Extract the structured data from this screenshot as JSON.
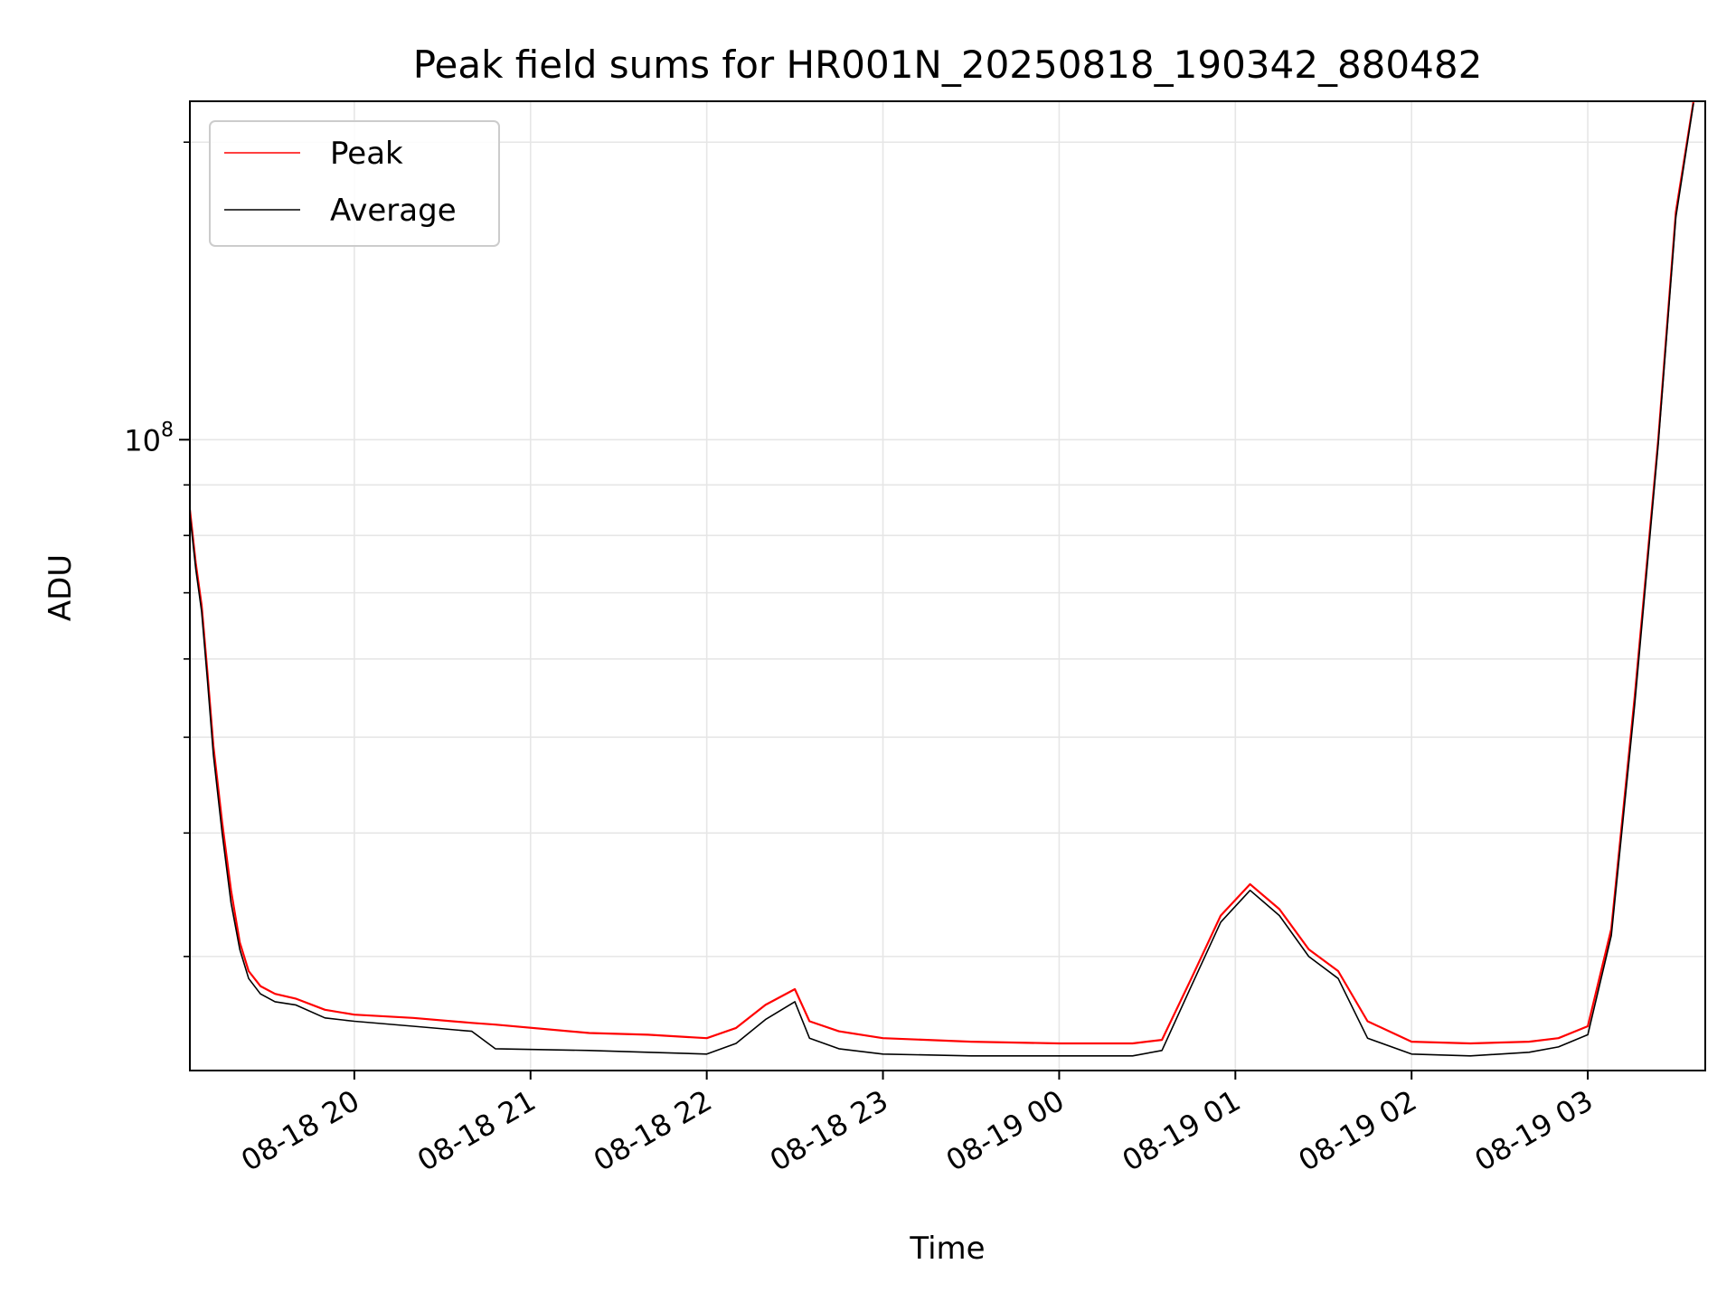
{
  "chart_data": {
    "type": "line",
    "title": "Peak field sums for HR001N_20250818_190342_880482",
    "xlabel": "Time",
    "ylabel": "ADU",
    "yscale": "log",
    "grid": true,
    "legend_position": "top-left",
    "x_tick_labels": [
      "08-18 20",
      "08-18 21",
      "08-18 22",
      "08-18 23",
      "08-19 00",
      "08-19 01",
      "08-19 02",
      "08-19 03"
    ],
    "x_tick_rotation_deg": 30,
    "y_tick_label": {
      "base": "10",
      "exponent": "8"
    },
    "xlim": [
      "2025-08-18 19:04",
      "2025-08-19 03:40"
    ],
    "ylim": [
      23000000,
      220000000
    ],
    "series": [
      {
        "name": "Peak",
        "color": "#ff0000",
        "x": [
          "2025-08-18 19:04",
          "2025-08-18 19:06",
          "2025-08-18 19:08",
          "2025-08-18 19:10",
          "2025-08-18 19:12",
          "2025-08-18 19:15",
          "2025-08-18 19:18",
          "2025-08-18 19:21",
          "2025-08-18 19:24",
          "2025-08-18 19:28",
          "2025-08-18 19:33",
          "2025-08-18 19:40",
          "2025-08-18 19:50",
          "2025-08-18 20:00",
          "2025-08-18 20:20",
          "2025-08-18 20:40",
          "2025-08-18 20:48",
          "2025-08-18 21:20",
          "2025-08-18 21:40",
          "2025-08-18 22:00",
          "2025-08-18 22:10",
          "2025-08-18 22:20",
          "2025-08-18 22:30",
          "2025-08-18 22:35",
          "2025-08-18 22:45",
          "2025-08-18 23:00",
          "2025-08-18 23:30",
          "2025-08-19 00:00",
          "2025-08-19 00:25",
          "2025-08-19 00:35",
          "2025-08-19 00:45",
          "2025-08-19 00:55",
          "2025-08-19 01:05",
          "2025-08-19 01:15",
          "2025-08-19 01:25",
          "2025-08-19 01:35",
          "2025-08-19 01:45",
          "2025-08-19 02:00",
          "2025-08-19 02:20",
          "2025-08-19 02:40",
          "2025-08-19 02:50",
          "2025-08-19 03:00",
          "2025-08-19 03:08",
          "2025-08-19 03:16",
          "2025-08-19 03:24",
          "2025-08-19 03:30",
          "2025-08-19 03:36"
        ],
        "values": [
          85000000,
          75000000,
          68000000,
          58000000,
          49000000,
          41000000,
          35000000,
          31000000,
          29000000,
          28000000,
          27500000,
          27200000,
          26500000,
          26200000,
          26000000,
          25700000,
          25600000,
          25100000,
          25000000,
          24800000,
          25400000,
          26800000,
          27800000,
          25800000,
          25200000,
          24800000,
          24600000,
          24500000,
          24500000,
          24700000,
          28500000,
          33000000,
          35500000,
          33500000,
          30500000,
          29000000,
          25800000,
          24600000,
          24500000,
          24600000,
          24800000,
          25500000,
          32000000,
          55000000,
          100000000,
          170000000,
          220000000
        ]
      },
      {
        "name": "Average",
        "color": "#000000",
        "x": [
          "2025-08-18 19:04",
          "2025-08-18 19:06",
          "2025-08-18 19:08",
          "2025-08-18 19:10",
          "2025-08-18 19:12",
          "2025-08-18 19:15",
          "2025-08-18 19:18",
          "2025-08-18 19:21",
          "2025-08-18 19:24",
          "2025-08-18 19:28",
          "2025-08-18 19:33",
          "2025-08-18 19:40",
          "2025-08-18 19:50",
          "2025-08-18 20:00",
          "2025-08-18 20:20",
          "2025-08-18 20:40",
          "2025-08-18 20:48",
          "2025-08-18 21:20",
          "2025-08-18 21:40",
          "2025-08-18 22:00",
          "2025-08-18 22:10",
          "2025-08-18 22:20",
          "2025-08-18 22:30",
          "2025-08-18 22:35",
          "2025-08-18 22:45",
          "2025-08-18 23:00",
          "2025-08-18 23:30",
          "2025-08-19 00:00",
          "2025-08-19 00:25",
          "2025-08-19 00:35",
          "2025-08-19 00:45",
          "2025-08-19 00:55",
          "2025-08-19 01:05",
          "2025-08-19 01:15",
          "2025-08-19 01:25",
          "2025-08-19 01:35",
          "2025-08-19 01:45",
          "2025-08-19 02:00",
          "2025-08-19 02:20",
          "2025-08-19 02:40",
          "2025-08-19 02:50",
          "2025-08-19 03:00",
          "2025-08-19 03:08",
          "2025-08-19 03:16",
          "2025-08-19 03:24",
          "2025-08-19 03:30",
          "2025-08-19 03:36"
        ],
        "values": [
          84000000,
          74000000,
          67000000,
          57000000,
          48000000,
          40000000,
          34000000,
          30500000,
          28500000,
          27500000,
          27000000,
          26800000,
          26000000,
          25800000,
          25500000,
          25200000,
          24200000,
          24100000,
          24000000,
          23900000,
          24500000,
          25900000,
          27000000,
          24800000,
          24200000,
          23900000,
          23800000,
          23800000,
          23800000,
          24100000,
          28000000,
          32500000,
          35000000,
          33000000,
          30000000,
          28500000,
          24800000,
          23900000,
          23800000,
          24000000,
          24300000,
          25000000,
          31500000,
          54000000,
          99000000,
          168000000,
          219000000
        ]
      }
    ]
  }
}
